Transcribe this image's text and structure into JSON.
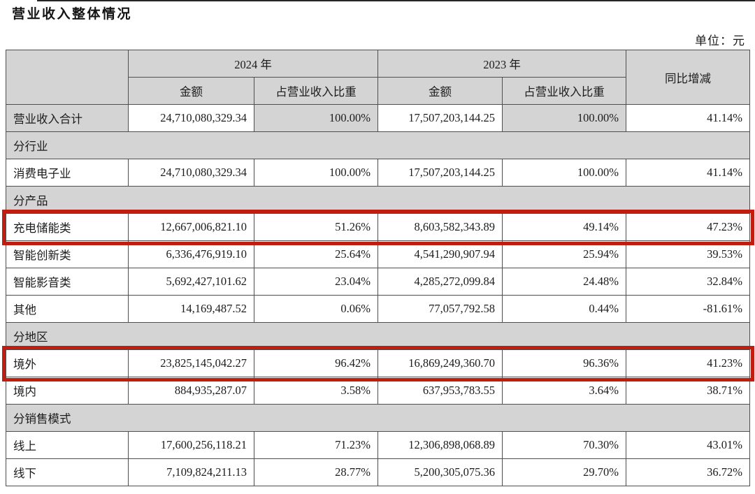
{
  "title": "营业收入整体情况",
  "unit_label": "单位：元",
  "colors": {
    "highlight_box": "#c01d10",
    "header_bg": "#d4d4d4",
    "border": "#4e4e4e"
  },
  "table": {
    "year_headers": [
      "2024 年",
      "2023 年"
    ],
    "sub_headers": [
      "金额",
      "占营业收入比重",
      "金额",
      "占营业收入比重"
    ],
    "yoy_header": "同比增减",
    "rows": [
      {
        "type": "data",
        "label": "营业收入合计",
        "values": [
          "24,710,080,329.34",
          "100.00%",
          "17,507,203,144.25",
          "100.00%",
          "41.14%"
        ],
        "shaded": [
          0,
          2,
          4
        ],
        "highlighted": false
      },
      {
        "type": "section",
        "label": "分行业"
      },
      {
        "type": "data",
        "label": "消费电子业",
        "values": [
          "24,710,080,329.34",
          "100.00%",
          "17,507,203,144.25",
          "100.00%",
          "41.14%"
        ],
        "shaded": [],
        "highlighted": false
      },
      {
        "type": "section",
        "label": "分产品"
      },
      {
        "type": "data",
        "label": "充电储能类",
        "values": [
          "12,667,006,821.10",
          "51.26%",
          "8,603,582,343.89",
          "49.14%",
          "47.23%"
        ],
        "shaded": [],
        "highlighted": true
      },
      {
        "type": "data",
        "label": "智能创新类",
        "values": [
          "6,336,476,919.10",
          "25.64%",
          "4,541,290,907.94",
          "25.94%",
          "39.53%"
        ],
        "shaded": [],
        "highlighted": false
      },
      {
        "type": "data",
        "label": "智能影音类",
        "values": [
          "5,692,427,101.62",
          "23.04%",
          "4,285,272,099.84",
          "24.48%",
          "32.84%"
        ],
        "shaded": [],
        "highlighted": false
      },
      {
        "type": "data",
        "label": "其他",
        "values": [
          "14,169,487.52",
          "0.06%",
          "77,057,792.58",
          "0.44%",
          "-81.61%"
        ],
        "shaded": [],
        "highlighted": false
      },
      {
        "type": "section",
        "label": "分地区"
      },
      {
        "type": "data",
        "label": "境外",
        "values": [
          "23,825,145,042.27",
          "96.42%",
          "16,869,249,360.70",
          "96.36%",
          "41.23%"
        ],
        "shaded": [],
        "highlighted": true
      },
      {
        "type": "data",
        "label": "境内",
        "values": [
          "884,935,287.07",
          "3.58%",
          "637,953,783.55",
          "3.64%",
          "38.71%"
        ],
        "shaded": [],
        "highlighted": false
      },
      {
        "type": "section",
        "label": "分销售模式"
      },
      {
        "type": "data",
        "label": "线上",
        "values": [
          "17,600,256,118.21",
          "71.23%",
          "12,306,898,068.89",
          "70.30%",
          "43.01%"
        ],
        "shaded": [],
        "highlighted": false
      },
      {
        "type": "data",
        "label": "线下",
        "values": [
          "7,109,824,211.13",
          "28.77%",
          "5,200,305,075.36",
          "29.70%",
          "36.72%"
        ],
        "shaded": [],
        "highlighted": false
      }
    ]
  }
}
